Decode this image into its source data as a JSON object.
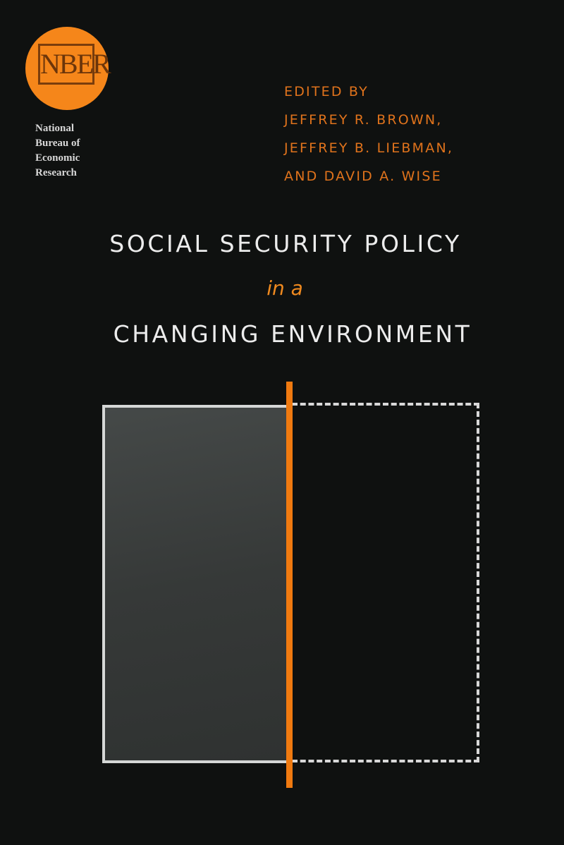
{
  "publisher": {
    "logo_text": "NBER",
    "name_lines": [
      "National",
      "Bureau of",
      "Economic",
      "Research"
    ]
  },
  "editors": {
    "label": "EDITED BY",
    "names": [
      "JEFFREY R. BROWN,",
      "JEFFREY B. LIEBMAN,",
      "AND DAVID A. WISE"
    ]
  },
  "title": {
    "line1": "SOCIAL SECURITY POLICY",
    "line2": "in a",
    "line3": "CHANGING ENVIRONMENT"
  },
  "colors": {
    "background": "#0f1110",
    "accent": "#f07a10",
    "text": "#ececec"
  }
}
